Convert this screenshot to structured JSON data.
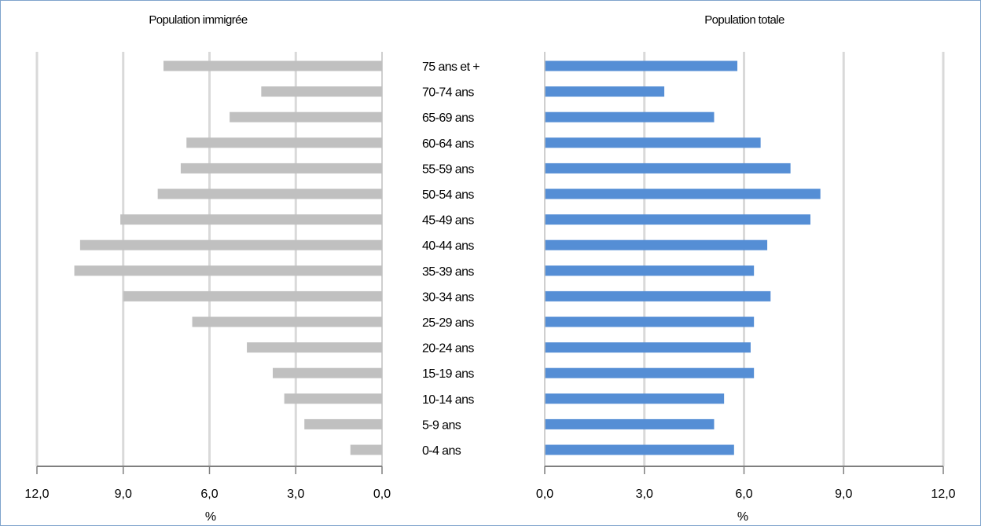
{
  "chart_data": {
    "type": "bar",
    "orientation": "horizontal",
    "layout": "population pyramid (two mirrored panels)",
    "categories": [
      "75 ans et +",
      "70-74 ans",
      "65-69 ans",
      "60-64 ans",
      "55-59 ans",
      "50-54 ans",
      "45-49 ans",
      "40-44 ans",
      "35-39 ans",
      "30-34 ans",
      "25-29 ans",
      "20-24 ans",
      "15-19 ans",
      "10-14 ans",
      "5-9 ans",
      "0-4 ans"
    ],
    "panels": [
      {
        "title": "Population immigrée",
        "direction": "right-to-left",
        "color": "#c0c0c0",
        "xlabel": "%",
        "xlim": [
          0,
          12
        ],
        "ticks": [
          "0,0",
          "3,0",
          "6,0",
          "9,0",
          "12,0"
        ],
        "values": [
          7.6,
          4.2,
          5.3,
          6.8,
          7.0,
          7.8,
          9.1,
          10.5,
          10.7,
          9.0,
          6.6,
          4.7,
          3.8,
          3.4,
          2.7,
          1.1
        ]
      },
      {
        "title": "Population totale",
        "direction": "left-to-right",
        "color": "#558ed5",
        "xlabel": "%",
        "xlim": [
          0,
          12
        ],
        "ticks": [
          "0,0",
          "3,0",
          "6,0",
          "9,0",
          "12,0"
        ],
        "values": [
          5.8,
          3.6,
          5.1,
          6.5,
          7.4,
          8.3,
          8.0,
          6.7,
          6.3,
          6.8,
          6.3,
          6.2,
          6.3,
          5.4,
          5.1,
          5.7
        ]
      }
    ],
    "grid": true,
    "legend": "none"
  }
}
